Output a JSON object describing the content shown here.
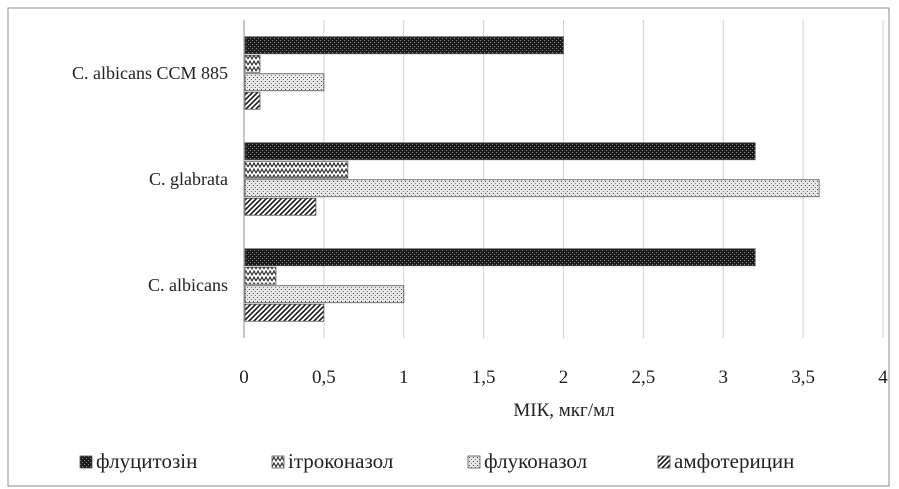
{
  "chart_data": {
    "type": "bar",
    "orientation": "horizontal",
    "categories": [
      "C. albicans CCM 885",
      "C. glabrata",
      "C. albicans"
    ],
    "series": [
      {
        "name": "флуцитозін",
        "values": [
          2.0,
          3.2,
          3.2
        ],
        "pattern": "dense-dark"
      },
      {
        "name": "ітроконазол",
        "values": [
          0.1,
          0.65,
          0.2
        ],
        "pattern": "zigzag"
      },
      {
        "name": "флуконазол",
        "values": [
          0.5,
          3.6,
          1.0
        ],
        "pattern": "dots"
      },
      {
        "name": "амфотерицин",
        "values": [
          0.1,
          0.45,
          0.5
        ],
        "pattern": "diagonal"
      }
    ],
    "x_ticks": [
      "0",
      "0,5",
      "1",
      "1,5",
      "2",
      "2,5",
      "3",
      "3,5",
      "4"
    ],
    "xlim": [
      0,
      4
    ],
    "xlabel": "МІК, мкг/мл",
    "title": "",
    "grid": true,
    "legend_position": "bottom"
  }
}
